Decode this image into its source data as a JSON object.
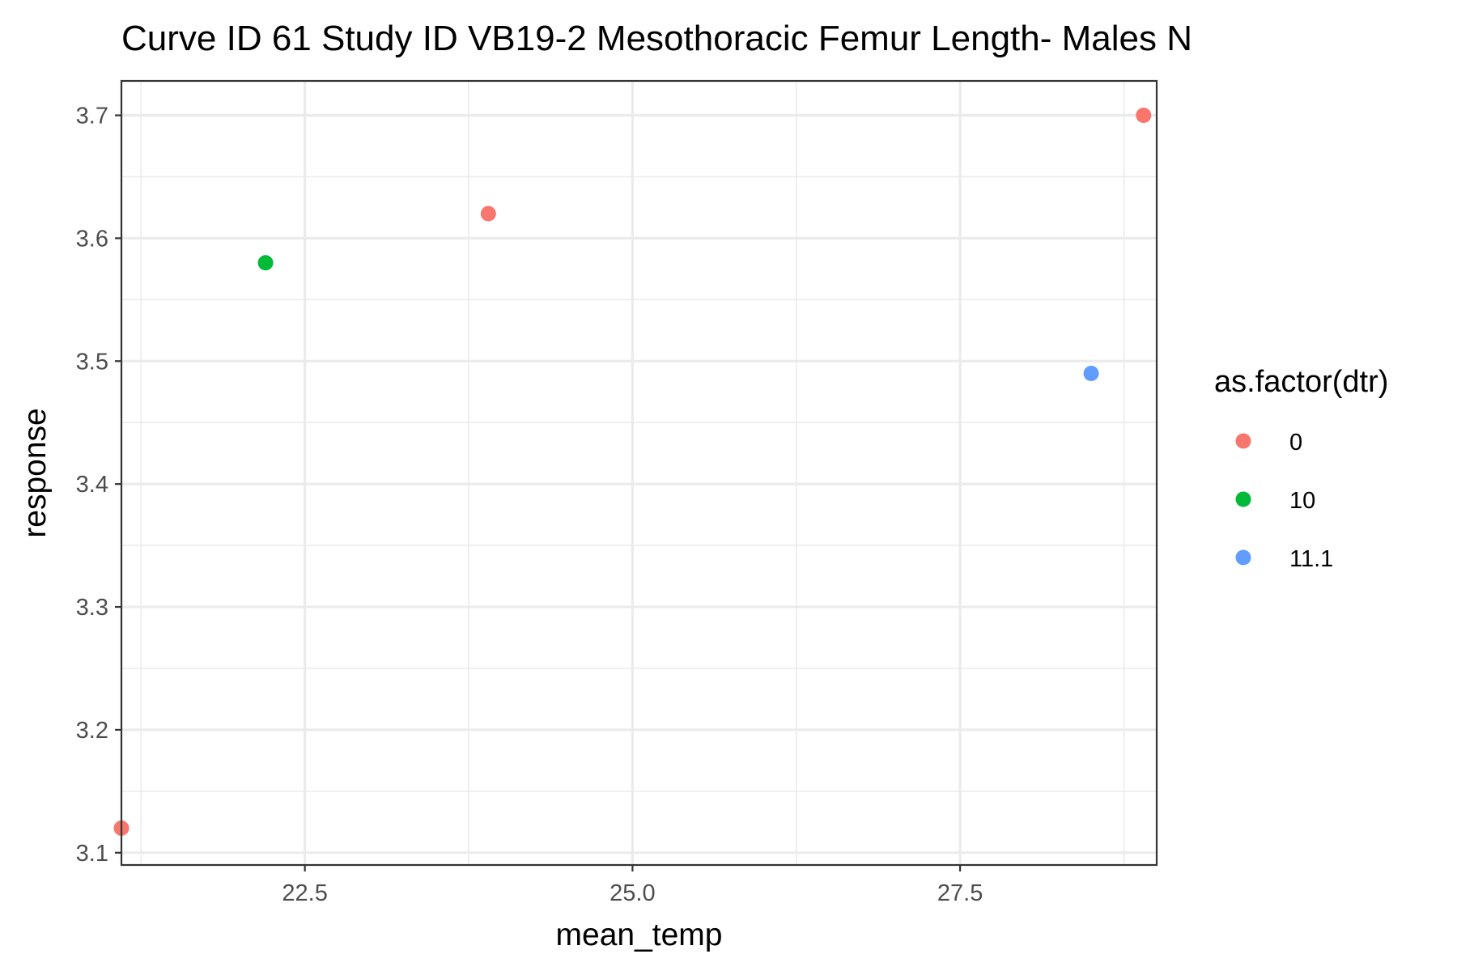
{
  "chart_data": {
    "type": "scatter",
    "title": "Curve ID 61 Study ID VB19-2 Mesothoracic Femur Length- Males N",
    "xlabel": "mean_temp",
    "ylabel": "response",
    "xlim": [
      21.1,
      29.0
    ],
    "ylim": [
      3.09,
      3.728
    ],
    "x_ticks": [
      22.5,
      25.0,
      27.5
    ],
    "x_tick_labels": [
      "22.5",
      "25.0",
      "27.5"
    ],
    "x_minor_ticks": [
      21.25,
      23.75,
      26.25,
      28.75
    ],
    "y_ticks": [
      3.1,
      3.2,
      3.3,
      3.4,
      3.5,
      3.6,
      3.7
    ],
    "y_tick_labels": [
      "3.1",
      "3.2",
      "3.3",
      "3.4",
      "3.5",
      "3.6",
      "3.7"
    ],
    "y_minor_ticks": [
      3.15,
      3.25,
      3.35,
      3.45,
      3.55,
      3.65
    ],
    "grid": true,
    "legend": {
      "title": "as.factor(dtr)",
      "position": "right",
      "entries": [
        "0",
        "10",
        "11.1"
      ]
    },
    "colors": {
      "0": "#F8766D",
      "10": "#00BA38",
      "11.1": "#619CFF"
    },
    "series": [
      {
        "name": "0",
        "x": [
          21.1,
          23.9,
          28.9
        ],
        "y": [
          3.12,
          3.62,
          3.7
        ]
      },
      {
        "name": "10",
        "x": [
          22.2
        ],
        "y": [
          3.58
        ]
      },
      {
        "name": "11.1",
        "x": [
          28.5
        ],
        "y": [
          3.49
        ]
      }
    ]
  }
}
